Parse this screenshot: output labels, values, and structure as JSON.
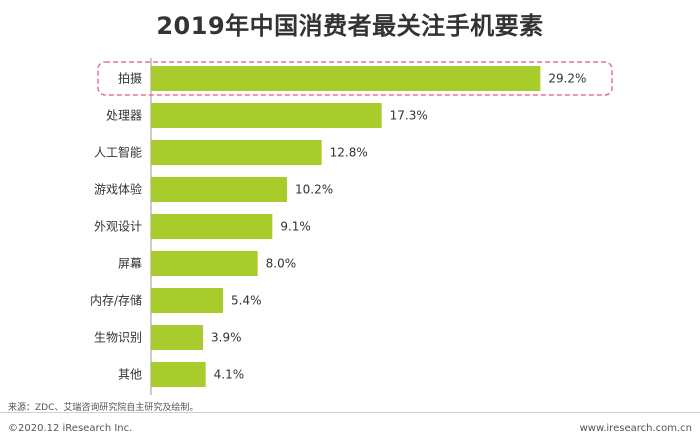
{
  "chart_data": {
    "type": "bar",
    "orientation": "horizontal",
    "title": "2019年中国消费者最关注手机要素",
    "categories": [
      "拍摄",
      "处理器",
      "人工智能",
      "游戏体验",
      "外观设计",
      "屏幕",
      "内存/存储",
      "生物识别",
      "其他"
    ],
    "values": [
      29.2,
      17.3,
      12.8,
      10.2,
      9.1,
      8.0,
      5.4,
      3.9,
      4.1
    ],
    "value_labels": [
      "29.2%",
      "17.3%",
      "12.8%",
      "10.2%",
      "9.1%",
      "8.0%",
      "5.4%",
      "3.9%",
      "4.1%"
    ],
    "xlim": [
      0,
      30
    ],
    "grid": false,
    "highlighted_category": "拍摄",
    "bar_color": "#a8cc2c",
    "highlight_border_color": "#e0788a"
  },
  "footer": {
    "source": "来源：ZDC、艾瑞咨询研究院自主研究及绘制。",
    "copyright": "©2020.12 iResearch Inc.",
    "website": "www.iresearch.com.cn"
  }
}
